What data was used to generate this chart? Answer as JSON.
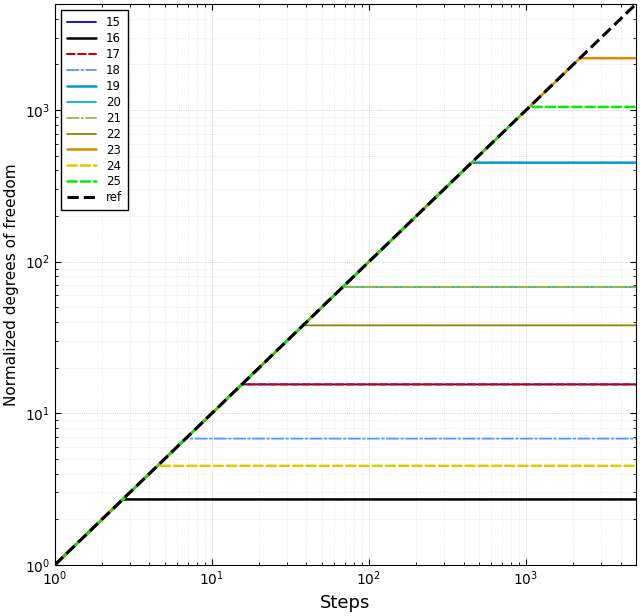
{
  "title": "",
  "xlabel": "Steps",
  "ylabel": "Normalized degrees of freedom",
  "xlim_lo": 1,
  "xlim_hi": 5000,
  "ylim_lo": 1,
  "ylim_hi": 5000,
  "background_color": "#ffffff",
  "series": [
    {
      "label": "15",
      "color": "#0000cc",
      "linestyle": "-",
      "linewidth": 1.3,
      "plateau": 15.5,
      "break_step": 15.5
    },
    {
      "label": "16",
      "color": "#000000",
      "linestyle": "-",
      "linewidth": 1.8,
      "plateau": 2.7,
      "break_step": 2.7
    },
    {
      "label": "17",
      "color": "#cc0000",
      "linestyle": "--",
      "linewidth": 1.5,
      "plateau": 15.5,
      "break_step": 15.5
    },
    {
      "label": "18",
      "color": "#5599ff",
      "linestyle": "-.",
      "linewidth": 1.3,
      "plateau": 6.8,
      "break_step": 6.8
    },
    {
      "label": "19",
      "color": "#0099cc",
      "linestyle": "-",
      "linewidth": 1.8,
      "plateau": 450,
      "break_step": 450
    },
    {
      "label": "20",
      "color": "#00bbaa",
      "linestyle": "-",
      "linewidth": 1.3,
      "plateau": 68,
      "break_step": 68
    },
    {
      "label": "21",
      "color": "#99bb44",
      "linestyle": "-.",
      "linewidth": 1.3,
      "plateau": 68,
      "break_step": 68
    },
    {
      "label": "22",
      "color": "#888800",
      "linestyle": "-",
      "linewidth": 1.3,
      "plateau": 38,
      "break_step": 38
    },
    {
      "label": "23",
      "color": "#dd8800",
      "linestyle": "-",
      "linewidth": 1.8,
      "plateau": 2200,
      "break_step": 2200
    },
    {
      "label": "24",
      "color": "#ddcc00",
      "linestyle": "--",
      "linewidth": 1.8,
      "plateau": 4.5,
      "break_step": 4.5
    },
    {
      "label": "25",
      "color": "#00ee00",
      "linestyle": "--",
      "linewidth": 1.8,
      "plateau": 1050,
      "break_step": 1050
    }
  ],
  "ref_color": "#000000",
  "ref_linestyle": "--",
  "ref_linewidth": 2.2
}
